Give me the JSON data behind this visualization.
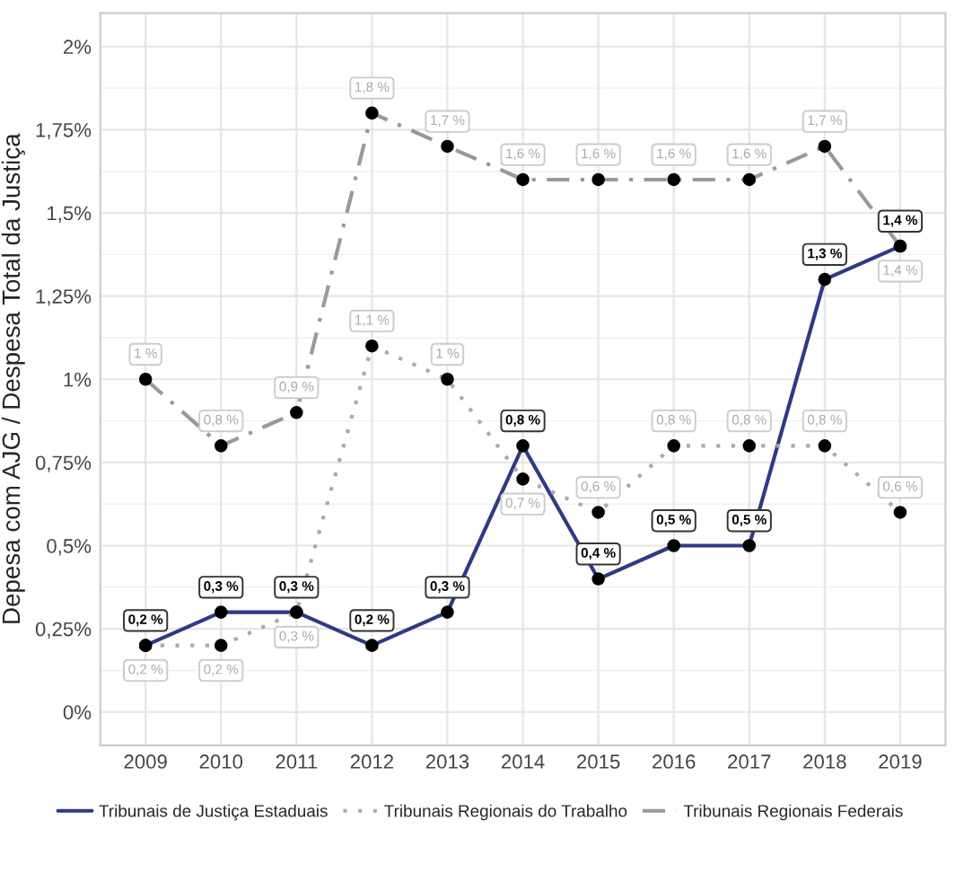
{
  "chart_data": {
    "type": "line",
    "ylabel": "Depesa com AJG / Despesa Total da Justiça",
    "categories": [
      "2009",
      "2010",
      "2011",
      "2012",
      "2013",
      "2014",
      "2015",
      "2016",
      "2017",
      "2018",
      "2019"
    ],
    "series": [
      {
        "name": "Tribunais de Justiça Estaduais",
        "color": "#2e3a87",
        "line_style": "solid",
        "values": [
          0.2,
          0.3,
          0.3,
          0.2,
          0.3,
          0.8,
          0.4,
          0.5,
          0.5,
          1.3,
          1.4
        ],
        "value_labels": [
          "0,2 %",
          "0,3 %",
          "0,3 %",
          "0,2 %",
          "0,3 %",
          "0,8 %",
          "0,4 %",
          "0,5 %",
          "0,5 %",
          "1,3 %",
          "1,4 %"
        ]
      },
      {
        "name": "Tribunais Regionais do Trabalho",
        "color": "#aaaaaa",
        "line_style": "dotted",
        "values": [
          0.2,
          0.2,
          0.3,
          1.1,
          1.0,
          0.7,
          0.6,
          0.8,
          0.8,
          0.8,
          0.6
        ],
        "value_labels": [
          "0,2 %",
          "0,2 %",
          "0,3 %",
          "1,1 %",
          "1 %",
          "0,7 %",
          "0,6 %",
          "0,8 %",
          "0,8 %",
          "0,8 %",
          "0,6 %"
        ]
      },
      {
        "name": "Tribunais Regionais Federais",
        "color": "#999999",
        "line_style": "dashdot",
        "values": [
          1.0,
          0.8,
          0.9,
          1.8,
          1.7,
          1.6,
          1.6,
          1.6,
          1.6,
          1.7,
          1.4
        ],
        "value_labels": [
          "1 %",
          "0,8 %",
          "0,9 %",
          "1,8 %",
          "1,7 %",
          "1,6 %",
          "1,6 %",
          "1,6 %",
          "1,6 %",
          "1,7 %",
          "1,4 %"
        ]
      }
    ],
    "ylim": [
      -0.1,
      2.1
    ],
    "yticks": [
      {
        "value": 0,
        "label": "0%"
      },
      {
        "value": 0.25,
        "label": "0,25%"
      },
      {
        "value": 0.5,
        "label": "0,5%"
      },
      {
        "value": 0.75,
        "label": "0,75%"
      },
      {
        "value": 1,
        "label": "1%"
      },
      {
        "value": 1.25,
        "label": "1,25%"
      },
      {
        "value": 1.5,
        "label": "1,5%"
      },
      {
        "value": 1.75,
        "label": "1,75%"
      },
      {
        "value": 2,
        "label": "2%"
      }
    ],
    "marker": "circle",
    "grid": true,
    "legend": "bottom"
  }
}
